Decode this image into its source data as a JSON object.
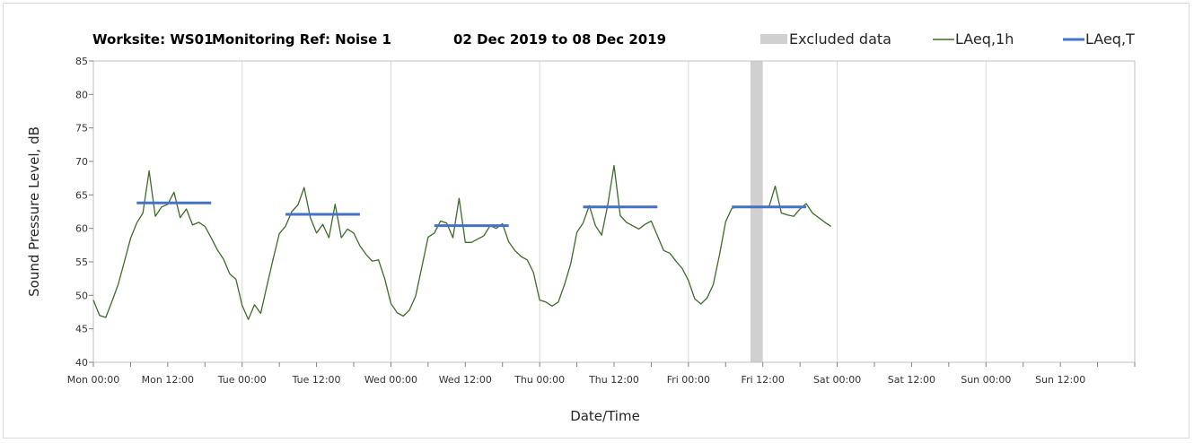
{
  "chart_data": {
    "type": "line",
    "title_parts": {
      "worksite": "Worksite: WS01",
      "monitoring_ref": "Monitoring Ref: Noise 1",
      "date_range": "02 Dec 2019 to 08 Dec 2019"
    },
    "xlabel": "Date/Time",
    "ylabel": "Sound Pressure Level, dB",
    "ylim": [
      40,
      85
    ],
    "yticks": [
      40,
      45,
      50,
      55,
      60,
      65,
      70,
      75,
      80,
      85
    ],
    "xlim_hours": [
      0,
      168
    ],
    "xticks": [
      {
        "hour": 0,
        "label": "Mon 00:00"
      },
      {
        "hour": 12,
        "label": "Mon 12:00"
      },
      {
        "hour": 24,
        "label": "Tue 00:00"
      },
      {
        "hour": 36,
        "label": "Tue 12:00"
      },
      {
        "hour": 48,
        "label": "Wed 00:00"
      },
      {
        "hour": 60,
        "label": "Wed 12:00"
      },
      {
        "hour": 72,
        "label": "Thu 00:00"
      },
      {
        "hour": 84,
        "label": "Thu 12:00"
      },
      {
        "hour": 96,
        "label": "Fri 00:00"
      },
      {
        "hour": 108,
        "label": "Fri 12:00"
      },
      {
        "hour": 120,
        "label": "Sat 00:00"
      },
      {
        "hour": 132,
        "label": "Sat 12:00"
      },
      {
        "hour": 144,
        "label": "Sun 00:00"
      },
      {
        "hour": 156,
        "label": "Sun 12:00"
      }
    ],
    "vgrid_hours": [
      24,
      48,
      72,
      96,
      120,
      144
    ],
    "legend": {
      "placement": "top-right",
      "items": [
        {
          "key": "excluded",
          "label": "Excluded data",
          "color": "#d0d0d0"
        },
        {
          "key": "laeq1h",
          "label": "LAeq,1h",
          "color": "#3f6b2a"
        },
        {
          "key": "laeqt",
          "label": "LAeq,T",
          "color": "#4472c4"
        }
      ]
    },
    "excluded_periods": [
      {
        "start_hour": 106,
        "end_hour": 108
      }
    ],
    "series": [
      {
        "name": "LAeq,1h",
        "color": "#3f6b2a",
        "points": [
          [
            0,
            49.3
          ],
          [
            1,
            47.0
          ],
          [
            2,
            46.7
          ],
          [
            3,
            49.1
          ],
          [
            4,
            51.6
          ],
          [
            5,
            55.0
          ],
          [
            6,
            58.5
          ],
          [
            7,
            60.8
          ],
          [
            8,
            62.3
          ],
          [
            9,
            68.6
          ],
          [
            10,
            61.8
          ],
          [
            11,
            63.2
          ],
          [
            12,
            63.6
          ],
          [
            13,
            65.4
          ],
          [
            14,
            61.6
          ],
          [
            15,
            62.9
          ],
          [
            16,
            60.5
          ],
          [
            17,
            60.9
          ],
          [
            18,
            60.3
          ],
          [
            19,
            58.6
          ],
          [
            20,
            56.8
          ],
          [
            21,
            55.4
          ],
          [
            22,
            53.2
          ],
          [
            23,
            52.4
          ],
          [
            24,
            48.5
          ],
          [
            25,
            46.4
          ],
          [
            26,
            48.6
          ],
          [
            27,
            47.3
          ],
          [
            28,
            51.4
          ],
          [
            29,
            55.4
          ],
          [
            30,
            59.2
          ],
          [
            31,
            60.3
          ],
          [
            32,
            62.5
          ],
          [
            33,
            63.5
          ],
          [
            34,
            66.1
          ],
          [
            35,
            61.6
          ],
          [
            36,
            59.3
          ],
          [
            37,
            60.6
          ],
          [
            38,
            58.6
          ],
          [
            39,
            63.6
          ],
          [
            40,
            58.6
          ],
          [
            41,
            59.9
          ],
          [
            42,
            59.3
          ],
          [
            43,
            57.4
          ],
          [
            44,
            56.1
          ],
          [
            45,
            55.1
          ],
          [
            46,
            55.3
          ],
          [
            47,
            52.5
          ],
          [
            48,
            48.8
          ],
          [
            49,
            47.4
          ],
          [
            50,
            46.9
          ],
          [
            51,
            47.8
          ],
          [
            52,
            49.9
          ],
          [
            53,
            54.3
          ],
          [
            54,
            58.7
          ],
          [
            55,
            59.3
          ],
          [
            56,
            61.1
          ],
          [
            57,
            60.8
          ],
          [
            58,
            58.6
          ],
          [
            59,
            64.5
          ],
          [
            60,
            57.9
          ],
          [
            61,
            57.9
          ],
          [
            62,
            58.4
          ],
          [
            63,
            58.9
          ],
          [
            64,
            60.4
          ],
          [
            65,
            60.0
          ],
          [
            66,
            60.7
          ],
          [
            67,
            58.0
          ],
          [
            68,
            56.7
          ],
          [
            69,
            55.8
          ],
          [
            70,
            55.3
          ],
          [
            71,
            53.4
          ],
          [
            72,
            49.3
          ],
          [
            73,
            49.0
          ],
          [
            74,
            48.4
          ],
          [
            75,
            49.0
          ],
          [
            76,
            51.6
          ],
          [
            77,
            54.7
          ],
          [
            78,
            59.4
          ],
          [
            79,
            60.8
          ],
          [
            80,
            63.4
          ],
          [
            81,
            60.4
          ],
          [
            82,
            59.0
          ],
          [
            83,
            63.6
          ],
          [
            84,
            69.4
          ],
          [
            85,
            61.9
          ],
          [
            86,
            60.9
          ],
          [
            87,
            60.4
          ],
          [
            88,
            59.9
          ],
          [
            89,
            60.6
          ],
          [
            90,
            61.1
          ],
          [
            91,
            58.9
          ],
          [
            92,
            56.7
          ],
          [
            93,
            56.3
          ],
          [
            94,
            55.1
          ],
          [
            95,
            54.0
          ],
          [
            96,
            52.2
          ],
          [
            97,
            49.5
          ],
          [
            98,
            48.7
          ],
          [
            99,
            49.6
          ],
          [
            100,
            51.6
          ],
          [
            101,
            56.0
          ],
          [
            102,
            61.0
          ],
          [
            103,
            63.0
          ],
          [
            104,
            63.2
          ],
          [
            109,
            63.2
          ],
          [
            110,
            66.3
          ],
          [
            111,
            62.3
          ],
          [
            112,
            62.0
          ],
          [
            113,
            61.8
          ],
          [
            114,
            62.9
          ],
          [
            115,
            63.7
          ],
          [
            116,
            62.3
          ],
          [
            117,
            61.6
          ],
          [
            118,
            60.9
          ],
          [
            119,
            60.3
          ]
        ]
      },
      {
        "name": "LAeq,T",
        "color": "#4472c4",
        "segments": [
          {
            "start_hour": 7,
            "end_hour": 19,
            "value": 63.8
          },
          {
            "start_hour": 31,
            "end_hour": 43,
            "value": 62.1
          },
          {
            "start_hour": 55,
            "end_hour": 67,
            "value": 60.4
          },
          {
            "start_hour": 79,
            "end_hour": 91,
            "value": 63.2
          },
          {
            "start_hour": 103,
            "end_hour": 115,
            "value": 63.2
          }
        ]
      }
    ]
  }
}
